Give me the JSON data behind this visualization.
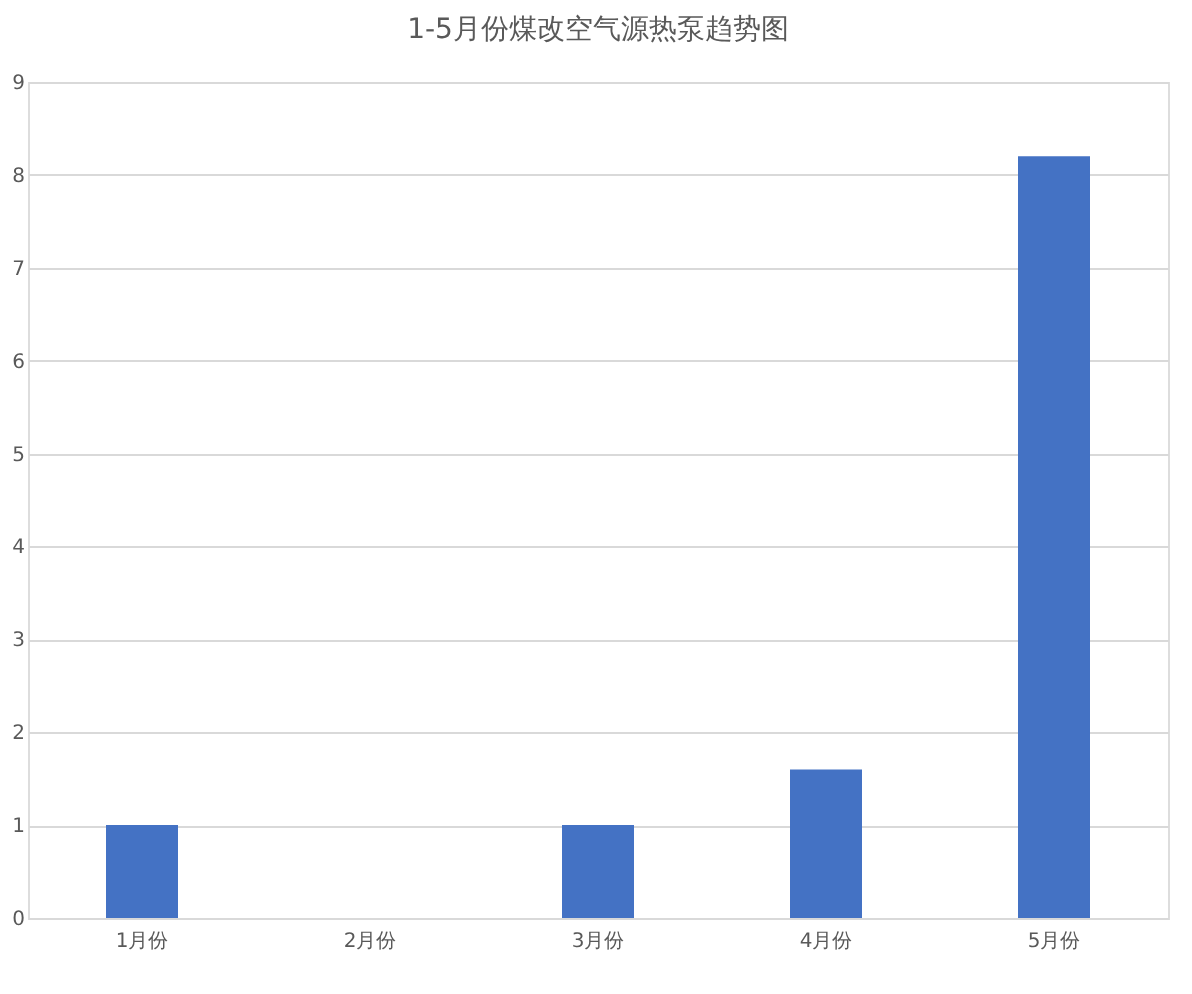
{
  "chart_data": {
    "type": "bar",
    "title": "1-5月份煤改空气源热泵趋势图",
    "categories": [
      "1月份",
      "2月份",
      "3月份",
      "4月份",
      "5月份"
    ],
    "values": [
      1,
      0,
      1,
      1.6,
      8.2
    ],
    "color": "#4472c4",
    "ylim": [
      0,
      9
    ],
    "yticks": [
      0,
      1,
      2,
      3,
      4,
      5,
      6,
      7,
      8,
      9
    ],
    "grid": "y"
  }
}
